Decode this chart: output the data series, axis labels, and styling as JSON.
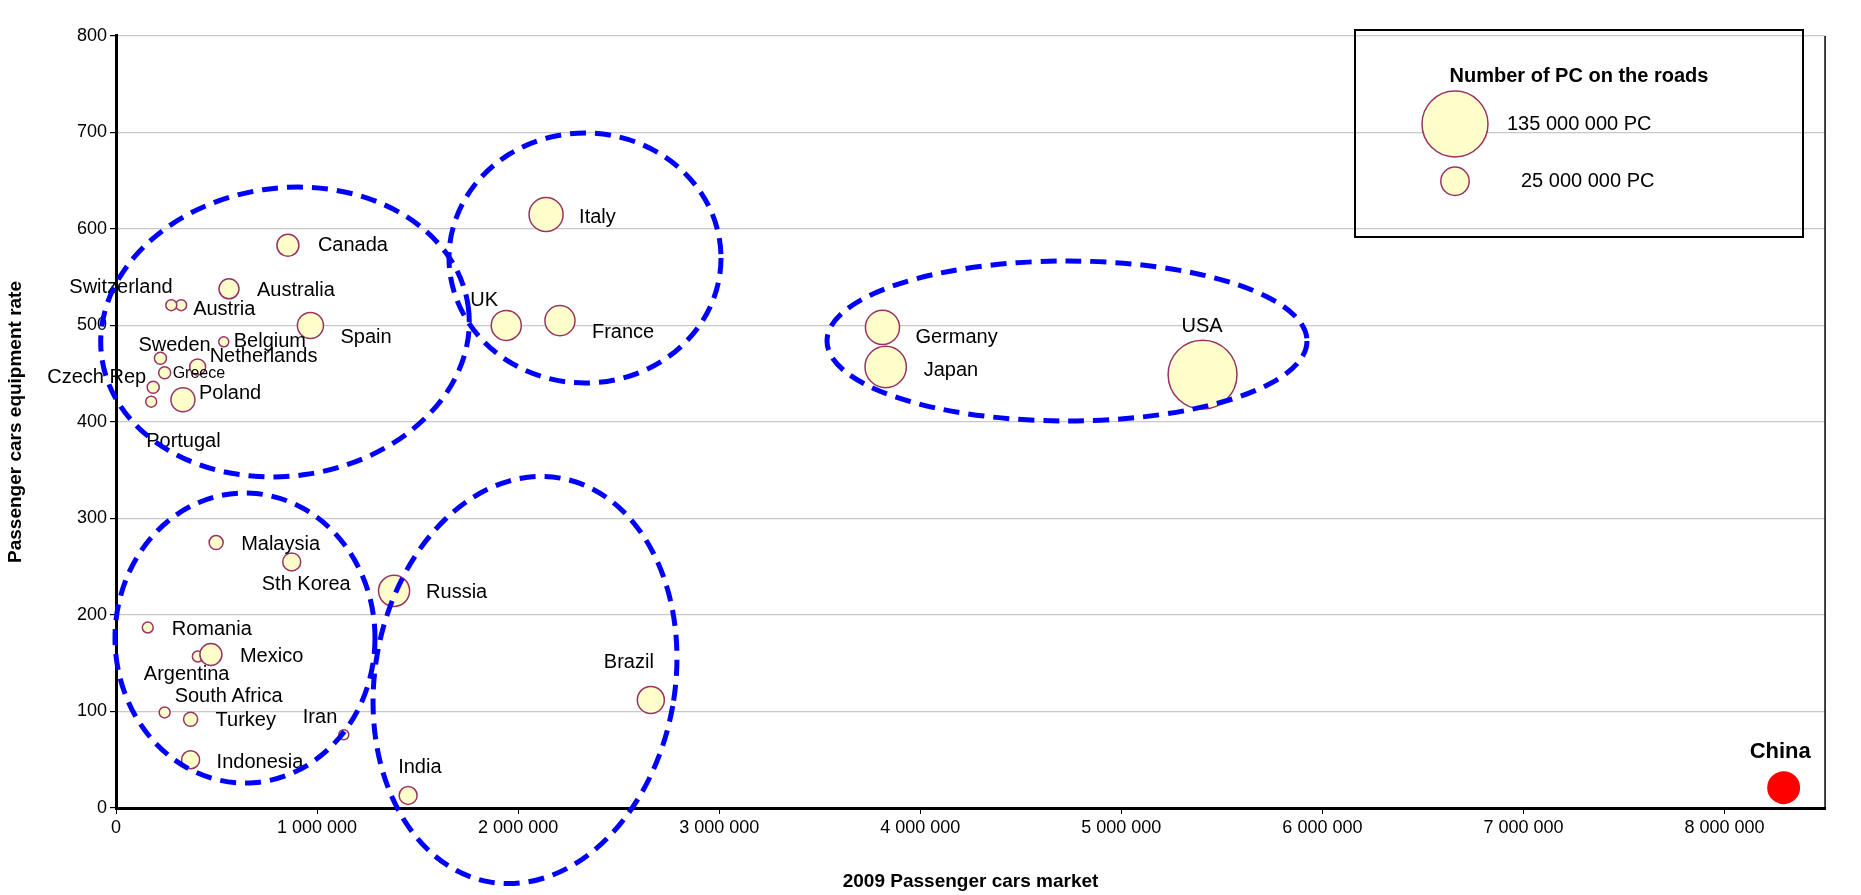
{
  "chart_data": {
    "type": "bubble",
    "xlabel": "2009 Passenger cars market",
    "ylabel": "Passenger cars equipment rate",
    "xlim": [
      0,
      8500000
    ],
    "xticks": [
      0,
      {
        "value": 1000000,
        "label": "1 000 000"
      },
      {
        "value": 2000000,
        "label": "2 000 000"
      },
      {
        "value": 3000000,
        "label": "3 000 000"
      },
      {
        "value": 4000000,
        "label": "4 000 000"
      },
      {
        "value": 5000000,
        "label": "5 000 000"
      },
      {
        "value": 6000000,
        "label": "6 000 000"
      },
      {
        "value": 7000000,
        "label": "7 000 000"
      },
      {
        "value": 8000000,
        "label": "8 000 000"
      }
    ],
    "ylim": [
      0,
      800
    ],
    "yticks": [
      0,
      100,
      200,
      300,
      400,
      500,
      600,
      700,
      800
    ],
    "grid": "y",
    "legend_title": "Number of PC on the roads",
    "size_legend": [
      {
        "value": 135000000,
        "label": "135 000 000 PC"
      },
      {
        "value": 25000000,
        "label": "25 000 000 PC"
      }
    ],
    "series": [
      {
        "name": "Canada",
        "color": "#ffffcc",
        "x": [
          855000
        ],
        "values": [
          583
        ],
        "sizes": [
          15000000
        ]
      },
      {
        "name": "Switzerland",
        "color": "#ffffcc",
        "x": [
          275000
        ],
        "values": [
          521
        ],
        "sizes": [
          3700000
        ]
      },
      {
        "name": "Austria",
        "color": "#ffffcc",
        "x": [
          324000
        ],
        "values": [
          521
        ],
        "sizes": [
          3700000
        ]
      },
      {
        "name": "Australia",
        "color": "#ffffcc",
        "x": [
          562000
        ],
        "values": [
          538
        ],
        "sizes": [
          12400000
        ]
      },
      {
        "name": "Spain",
        "color": "#ffffcc",
        "x": [
          967000
        ],
        "values": [
          500
        ],
        "sizes": [
          21000000
        ]
      },
      {
        "name": "Belgium",
        "color": "#ffffcc",
        "x": [
          536000
        ],
        "values": [
          483
        ],
        "sizes": [
          3100000
        ]
      },
      {
        "name": "Sweden",
        "color": "#ffffcc",
        "x": [
          221000
        ],
        "values": [
          466
        ],
        "sizes": [
          4500000
        ]
      },
      {
        "name": "Netherlands",
        "color": "#ffffcc",
        "x": [
          406000
        ],
        "values": [
          457
        ],
        "sizes": [
          7900000
        ]
      },
      {
        "name": "Greece",
        "color": "#ffffcc",
        "x": [
          242000
        ],
        "values": [
          451
        ],
        "sizes": [
          4500000
        ]
      },
      {
        "name": "Czech Rep",
        "color": "#ffffcc",
        "x": [
          185000
        ],
        "values": [
          436
        ],
        "sizes": [
          4500000
        ]
      },
      {
        "name": "Portugal",
        "color": "#ffffcc",
        "x": [
          175000
        ],
        "values": [
          421
        ],
        "sizes": [
          3700000
        ]
      },
      {
        "name": "Poland",
        "color": "#ffffcc",
        "x": [
          333000
        ],
        "values": [
          423
        ],
        "sizes": [
          17900000
        ]
      },
      {
        "name": "UK",
        "color": "#ffffcc",
        "x": [
          1941000
        ],
        "values": [
          500
        ],
        "sizes": [
          28000000
        ]
      },
      {
        "name": "France",
        "color": "#ffffcc",
        "x": [
          2208000
        ],
        "values": [
          505
        ],
        "sizes": [
          28000000
        ]
      },
      {
        "name": "Italy",
        "color": "#ffffcc",
        "x": [
          2139000
        ],
        "values": [
          615
        ],
        "sizes": [
          36000000
        ]
      },
      {
        "name": "Germany",
        "color": "#ffffcc",
        "x": [
          3812000
        ],
        "values": [
          498
        ],
        "sizes": [
          36000000
        ]
      },
      {
        "name": "Japan",
        "color": "#ffffcc",
        "x": [
          3828000
        ],
        "values": [
          457
        ],
        "sizes": [
          53000000
        ]
      },
      {
        "name": "USA",
        "color": "#ffffcc",
        "x": [
          5404000
        ],
        "values": [
          449
        ],
        "sizes": [
          147000000
        ]
      },
      {
        "name": "Malaysia",
        "color": "#ffffcc",
        "x": [
          498000
        ],
        "values": [
          275
        ],
        "sizes": [
          6100000
        ]
      },
      {
        "name": "Sth Korea",
        "color": "#ffffcc",
        "x": [
          874000
        ],
        "values": [
          255
        ],
        "sizes": [
          10000000
        ]
      },
      {
        "name": "Russia",
        "color": "#ffffcc",
        "x": [
          1383000
        ],
        "values": [
          225
        ],
        "sizes": [
          30000000
        ]
      },
      {
        "name": "Romania",
        "color": "#ffffcc",
        "x": [
          158000
        ],
        "values": [
          187
        ],
        "sizes": [
          3700000
        ]
      },
      {
        "name": "Mexico",
        "color": "#ffffcc",
        "x": [
          472000
        ],
        "values": [
          159
        ],
        "sizes": [
          15000000
        ]
      },
      {
        "name": "Argentina",
        "color": "#ffffcc",
        "x": [
          407000
        ],
        "values": [
          157
        ],
        "sizes": [
          3700000
        ]
      },
      {
        "name": "South Africa",
        "color": "#ffffcc",
        "x": [
          242000
        ],
        "values": [
          99
        ],
        "sizes": [
          3700000
        ]
      },
      {
        "name": "Turkey",
        "color": "#ffffcc",
        "x": [
          371000
        ],
        "values": [
          92
        ],
        "sizes": [
          6100000
        ]
      },
      {
        "name": "Iran",
        "color": "#ffffcc",
        "x": [
          1133000
        ],
        "values": [
          76
        ],
        "sizes": [
          3100000
        ]
      },
      {
        "name": "Indonesia",
        "color": "#ffffcc",
        "x": [
          371000
        ],
        "values": [
          50
        ],
        "sizes": [
          10000000
        ]
      },
      {
        "name": "Brazil",
        "color": "#ffffcc",
        "x": [
          2660000
        ],
        "values": [
          112
        ],
        "sizes": [
          22600000
        ]
      },
      {
        "name": "India",
        "color": "#ffffcc",
        "x": [
          1453000
        ],
        "values": [
          13
        ],
        "sizes": [
          10000000
        ]
      },
      {
        "name": "China",
        "color": "#ff0000",
        "x": [
          8294000
        ],
        "values": [
          21
        ],
        "sizes": [
          30600000
        ]
      }
    ]
  }
}
